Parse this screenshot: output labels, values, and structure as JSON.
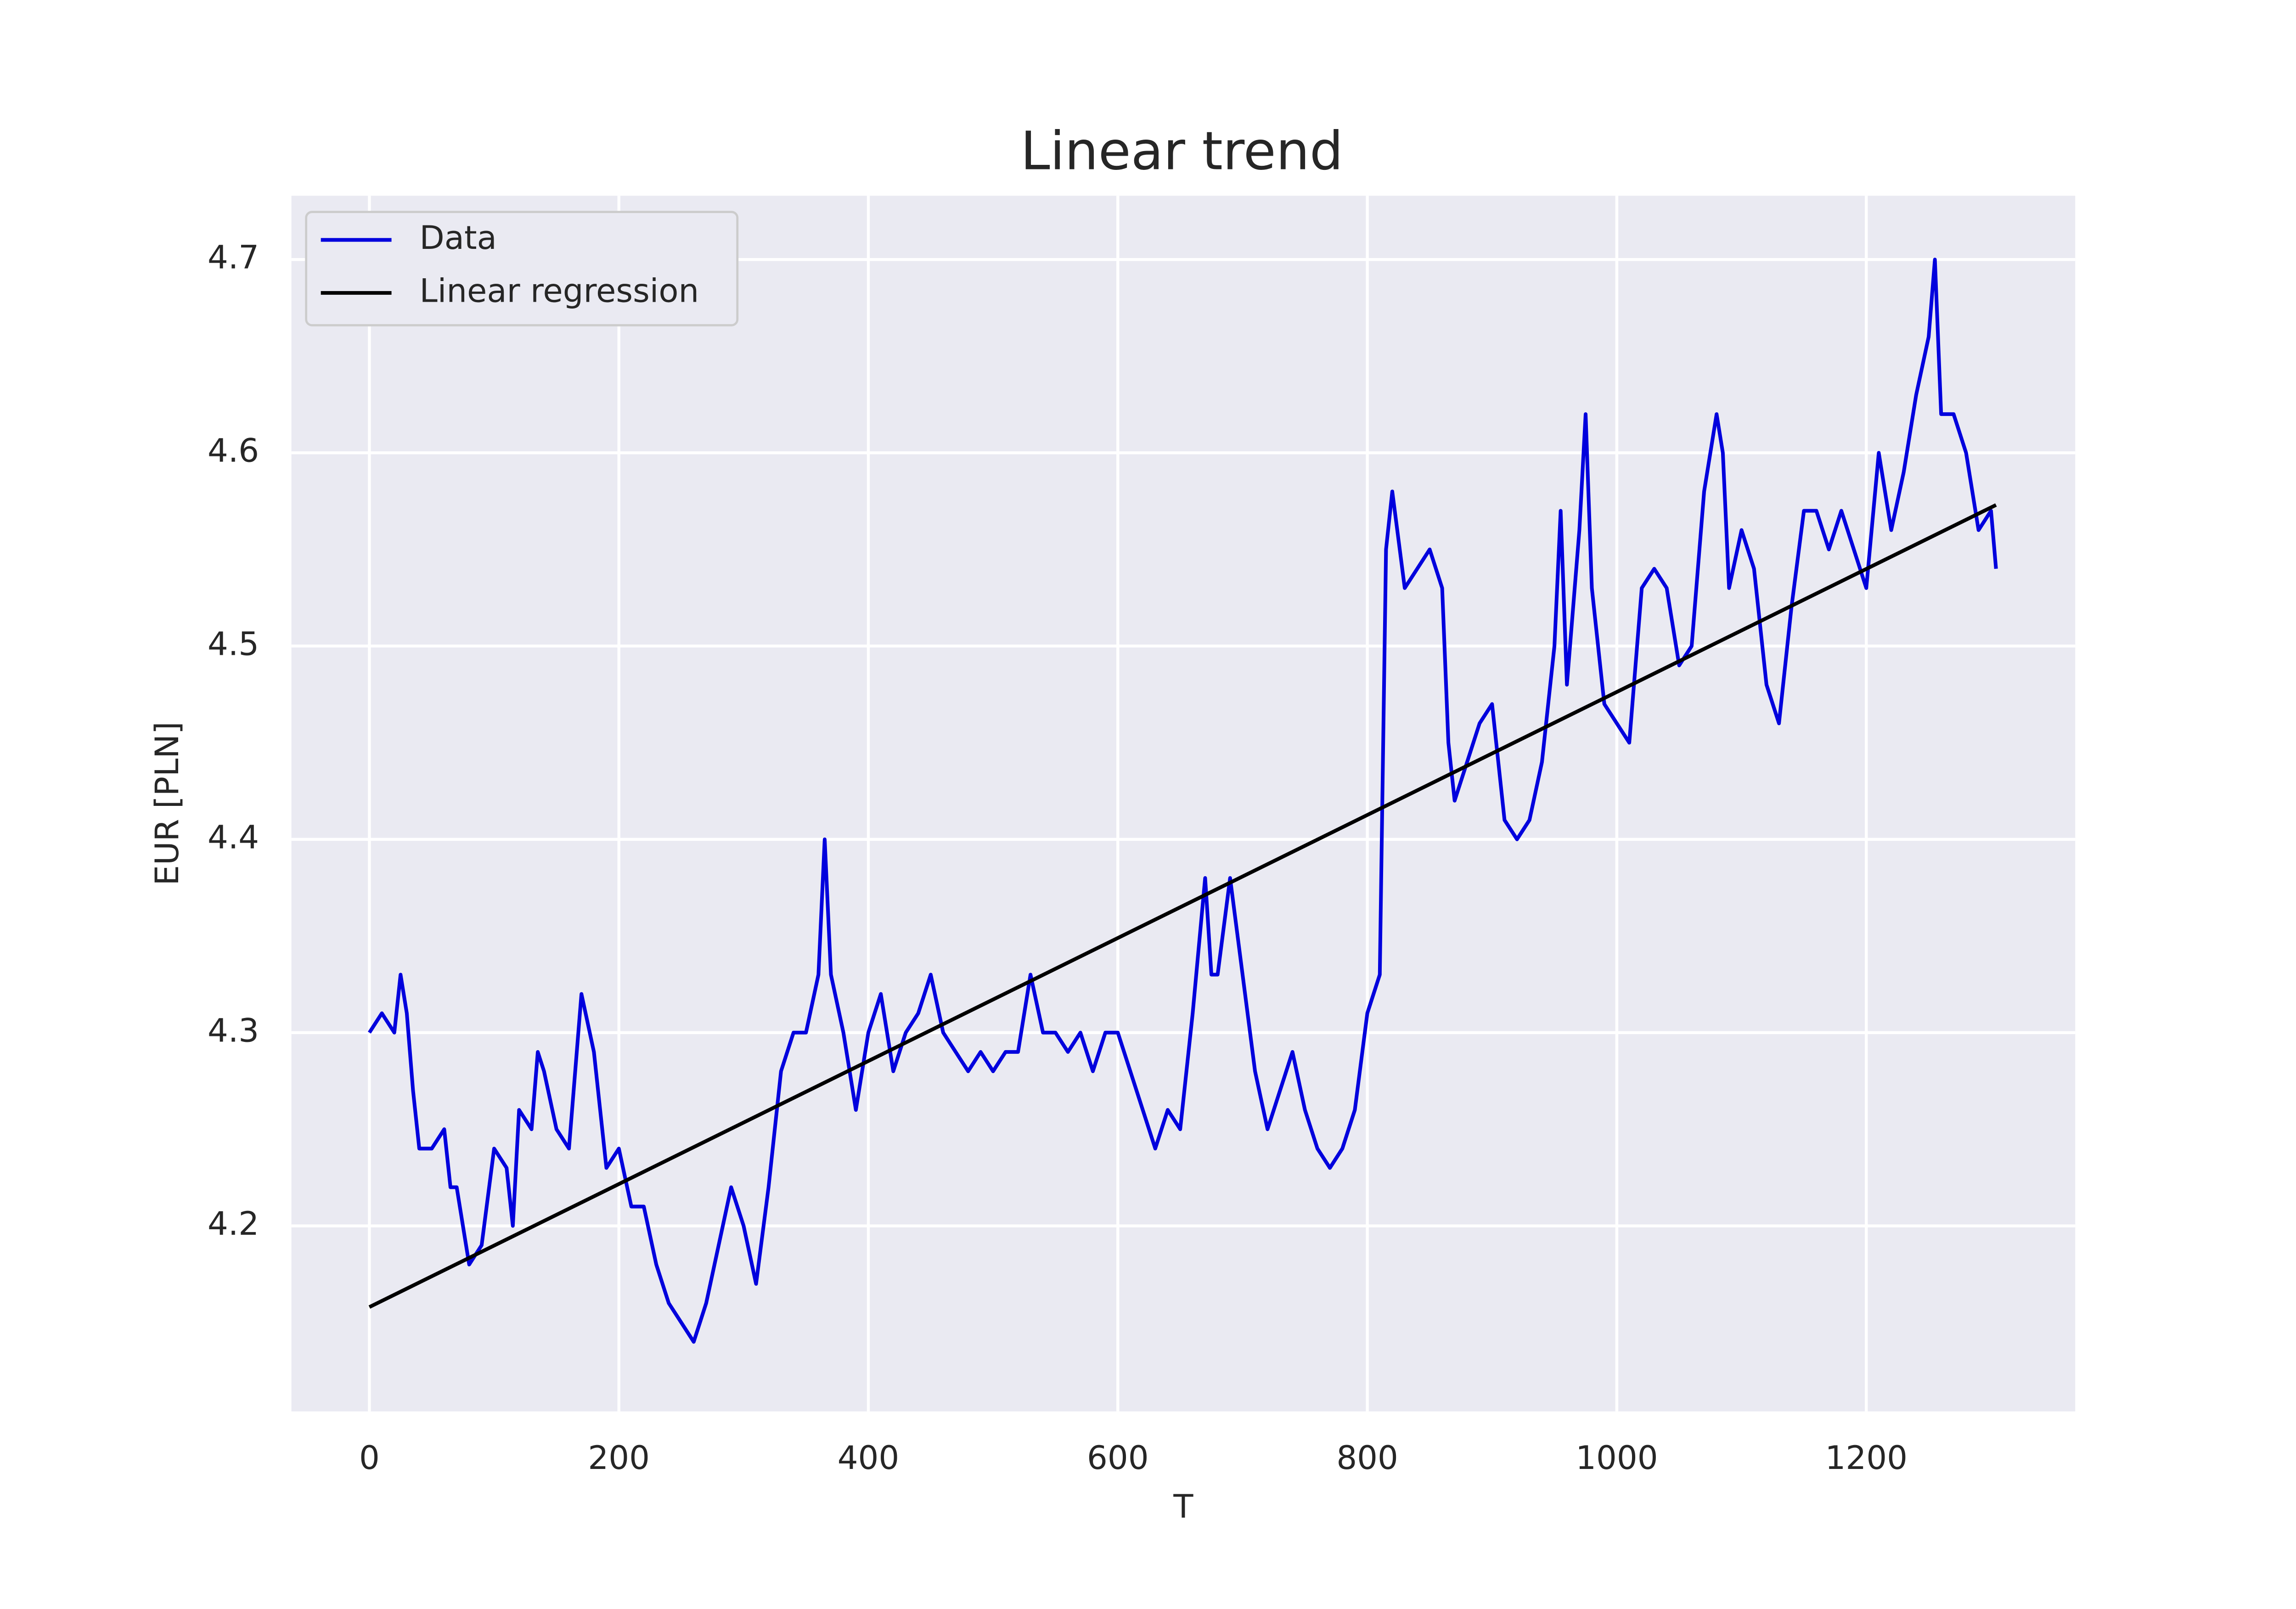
{
  "chart_data": {
    "type": "line",
    "title": "Linear trend",
    "xlabel": "T",
    "ylabel": "EUR [PLN]",
    "xlim": [
      -62.5,
      1367.5
    ],
    "ylim": [
      4.104,
      4.733
    ],
    "xticks": [
      0,
      200,
      400,
      600,
      800,
      1000,
      1200
    ],
    "yticks": [
      4.2,
      4.3,
      4.4,
      4.5,
      4.6,
      4.7
    ],
    "grid": true,
    "legend": "upper left",
    "series": [
      {
        "name": "Data",
        "color": "#0000dd",
        "x": [
          0,
          10,
          20,
          25,
          30,
          35,
          40,
          50,
          60,
          65,
          70,
          80,
          90,
          100,
          110,
          115,
          120,
          130,
          135,
          140,
          150,
          160,
          170,
          180,
          185,
          190,
          200,
          210,
          220,
          230,
          240,
          250,
          260,
          270,
          280,
          290,
          300,
          310,
          320,
          330,
          340,
          350,
          360,
          365,
          370,
          380,
          390,
          400,
          410,
          420,
          430,
          440,
          450,
          460,
          470,
          480,
          490,
          500,
          510,
          520,
          530,
          540,
          550,
          560,
          570,
          580,
          590,
          600,
          610,
          620,
          630,
          640,
          650,
          660,
          670,
          675,
          680,
          690,
          700,
          710,
          720,
          730,
          740,
          750,
          760,
          770,
          780,
          790,
          800,
          810,
          815,
          820,
          830,
          840,
          850,
          860,
          865,
          870,
          880,
          890,
          900,
          910,
          920,
          930,
          940,
          950,
          955,
          960,
          970,
          975,
          980,
          990,
          1000,
          1010,
          1020,
          1030,
          1040,
          1050,
          1060,
          1070,
          1080,
          1085,
          1090,
          1100,
          1110,
          1120,
          1130,
          1140,
          1150,
          1160,
          1170,
          1180,
          1190,
          1200,
          1210,
          1220,
          1230,
          1240,
          1250,
          1255,
          1260,
          1270,
          1280,
          1290,
          1300,
          1304
        ],
        "values": [
          4.3,
          4.31,
          4.3,
          4.33,
          4.31,
          4.27,
          4.24,
          4.24,
          4.25,
          4.22,
          4.22,
          4.18,
          4.19,
          4.24,
          4.23,
          4.2,
          4.26,
          4.25,
          4.29,
          4.28,
          4.25,
          4.24,
          4.32,
          4.29,
          4.26,
          4.23,
          4.24,
          4.21,
          4.21,
          4.18,
          4.16,
          4.15,
          4.14,
          4.16,
          4.19,
          4.22,
          4.2,
          4.17,
          4.22,
          4.28,
          4.3,
          4.3,
          4.33,
          4.4,
          4.33,
          4.3,
          4.26,
          4.3,
          4.32,
          4.28,
          4.3,
          4.31,
          4.33,
          4.3,
          4.29,
          4.28,
          4.29,
          4.28,
          4.29,
          4.29,
          4.33,
          4.3,
          4.3,
          4.29,
          4.3,
          4.28,
          4.3,
          4.3,
          4.28,
          4.26,
          4.24,
          4.26,
          4.25,
          4.31,
          4.38,
          4.33,
          4.33,
          4.38,
          4.33,
          4.28,
          4.25,
          4.27,
          4.29,
          4.26,
          4.24,
          4.23,
          4.24,
          4.26,
          4.31,
          4.33,
          4.55,
          4.58,
          4.53,
          4.54,
          4.55,
          4.53,
          4.45,
          4.42,
          4.44,
          4.46,
          4.47,
          4.41,
          4.4,
          4.41,
          4.44,
          4.5,
          4.57,
          4.48,
          4.56,
          4.62,
          4.53,
          4.47,
          4.46,
          4.45,
          4.53,
          4.54,
          4.53,
          4.49,
          4.5,
          4.58,
          4.62,
          4.6,
          4.53,
          4.56,
          4.54,
          4.48,
          4.46,
          4.52,
          4.57,
          4.57,
          4.55,
          4.57,
          4.55,
          4.53,
          4.6,
          4.56,
          4.59,
          4.63,
          4.66,
          4.7,
          4.62,
          4.62,
          4.6,
          4.56,
          4.57,
          4.54
        ]
      },
      {
        "name": "Linear regression",
        "color": "#000000",
        "x": [
          0,
          1304
        ],
        "values": [
          4.158,
          4.573
        ]
      }
    ]
  }
}
